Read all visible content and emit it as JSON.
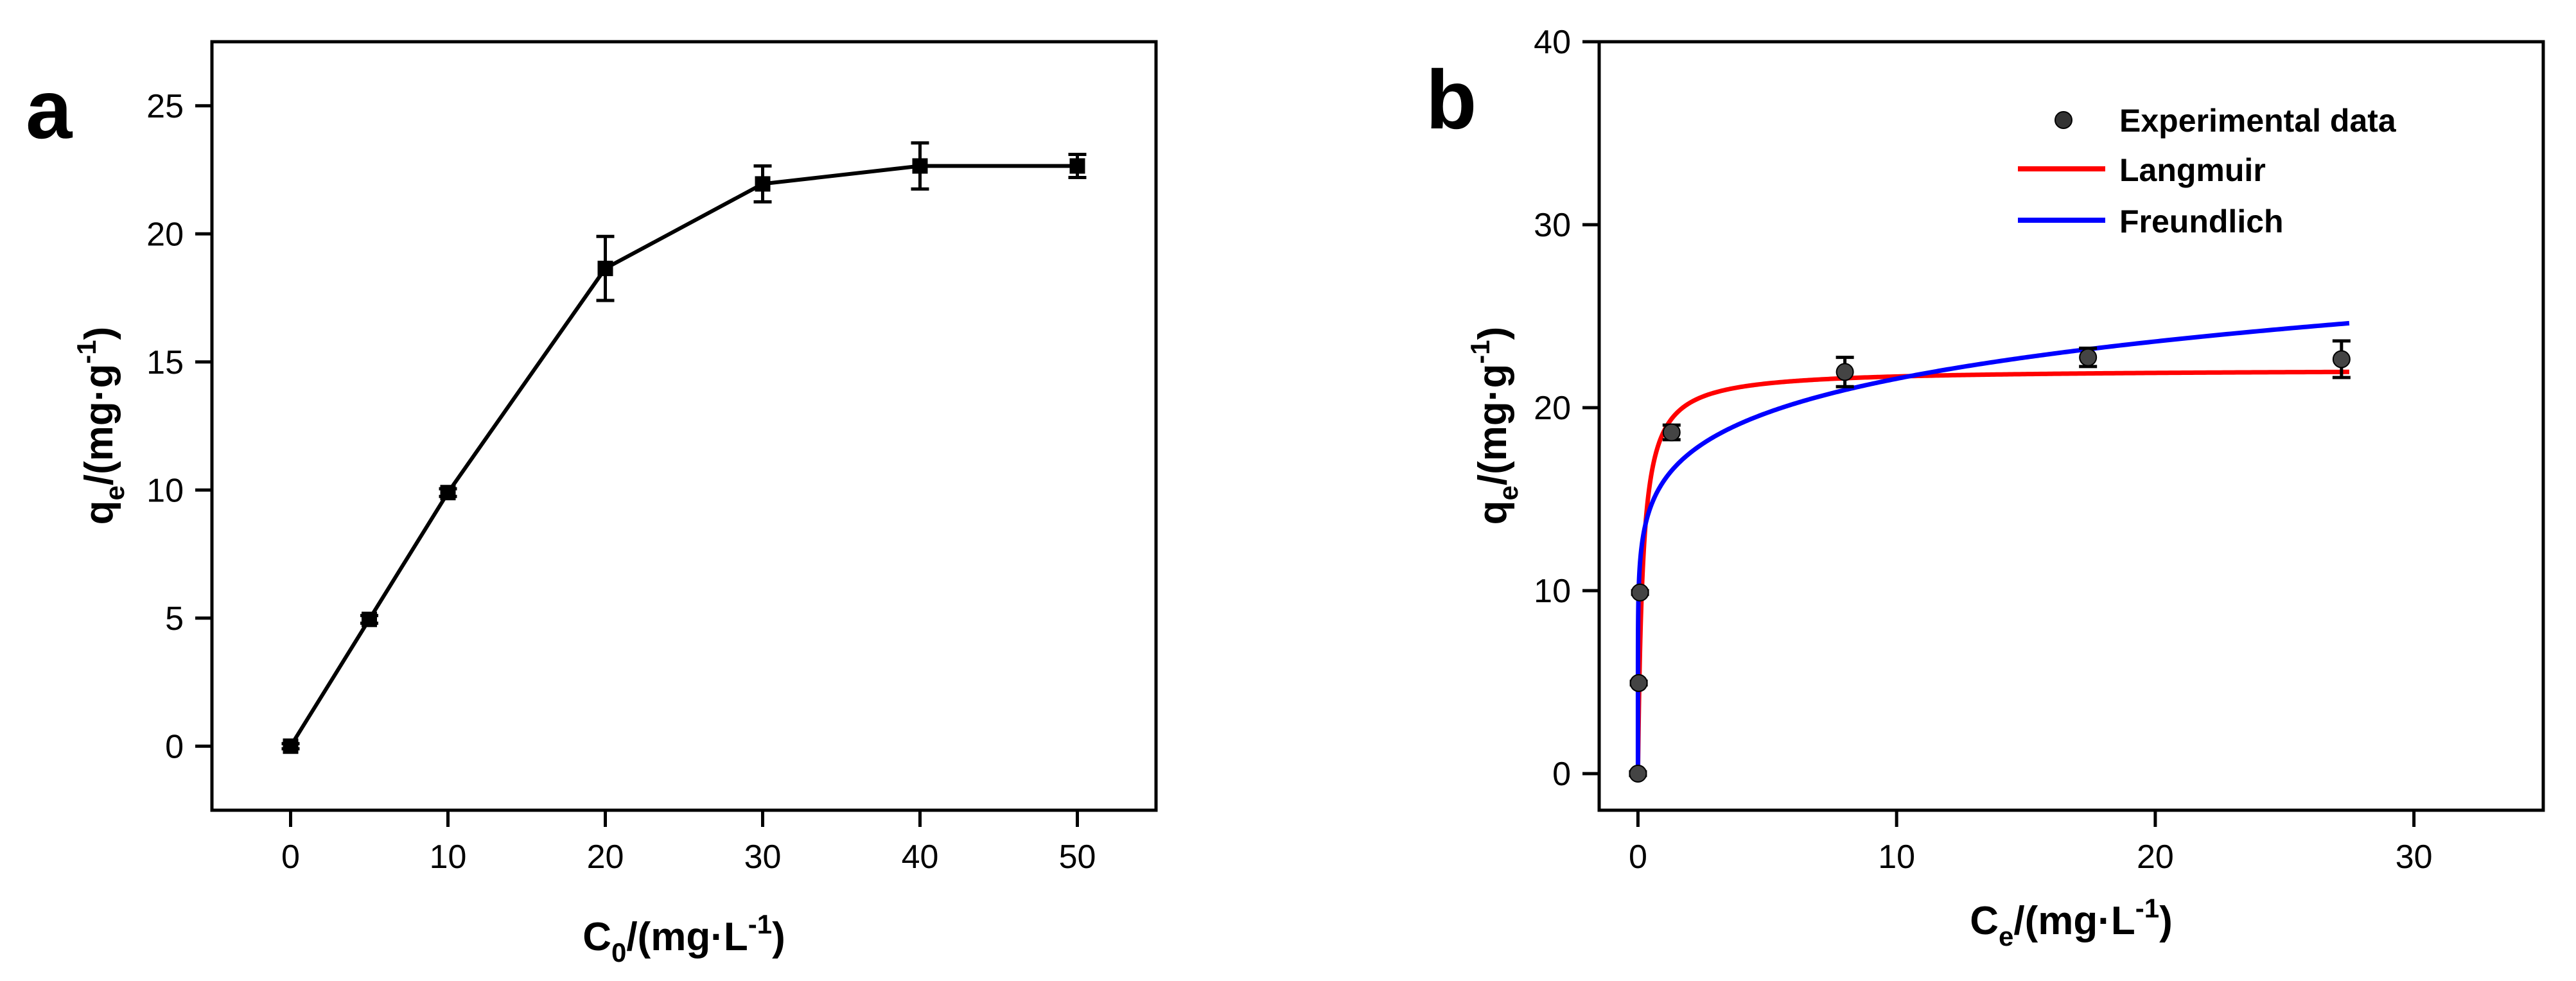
{
  "chart_data": [
    {
      "type": "line",
      "panel_label": "a",
      "title": "",
      "xlabel": {
        "base": "C",
        "sub": "0",
        "mid": "/(mg·L",
        "sup": "-1",
        "end": ")"
      },
      "ylabel": {
        "base": "q",
        "sub": "e",
        "mid": "/(mg·g",
        "sup": "-1",
        "end": ")"
      },
      "xlim": [
        -5,
        55
      ],
      "ylim": [
        -2.5,
        27.5
      ],
      "xticks": [
        0,
        10,
        20,
        30,
        40,
        50
      ],
      "yticks": [
        0,
        5,
        10,
        15,
        20,
        25
      ],
      "grid": false,
      "series": [
        {
          "name": "qe",
          "marker": "square",
          "x": [
            0,
            5,
            10,
            20,
            30,
            40,
            50
          ],
          "y": [
            0.0,
            4.95,
            9.9,
            18.65,
            21.95,
            22.65,
            22.65
          ],
          "error": [
            0.1,
            0.15,
            0.15,
            1.25,
            0.7,
            0.9,
            0.45
          ]
        }
      ]
    },
    {
      "type": "scatter",
      "panel_label": "b",
      "title": "",
      "xlabel": {
        "base": "C",
        "sub": "e",
        "mid": "/(mg·L",
        "sup": "-1",
        "end": ")"
      },
      "ylabel": {
        "base": "q",
        "sub": "e",
        "mid": "/(mg·g",
        "sup": "-1",
        "end": ")"
      },
      "xlim": [
        -1.5,
        35
      ],
      "ylim": [
        -2,
        40
      ],
      "xticks": [
        0,
        10,
        20,
        30
      ],
      "yticks": [
        0,
        10,
        20,
        30,
        40
      ],
      "grid": false,
      "legend_position": "top-right",
      "legend": [
        "Experimental data",
        "Langmuir",
        "Freundlich"
      ],
      "experimental": {
        "x": [
          0.0,
          0.03,
          0.08,
          1.3,
          8.0,
          17.4,
          27.2
        ],
        "y": [
          0.0,
          4.95,
          9.9,
          18.65,
          21.95,
          22.75,
          22.65
        ],
        "error": [
          0.1,
          0.1,
          0.1,
          0.4,
          0.8,
          0.5,
          1.0
        ]
      },
      "langmuir": {
        "name": "Langmuir",
        "color": "#ff0000",
        "qmax": 22.1,
        "KL": 5.5,
        "xrange": [
          0,
          27.5
        ]
      },
      "freundlich": {
        "name": "Freundlich",
        "color": "#0000ff",
        "KF": 16.0,
        "n_inv": 0.13,
        "xrange": [
          0,
          27.5
        ]
      }
    }
  ]
}
